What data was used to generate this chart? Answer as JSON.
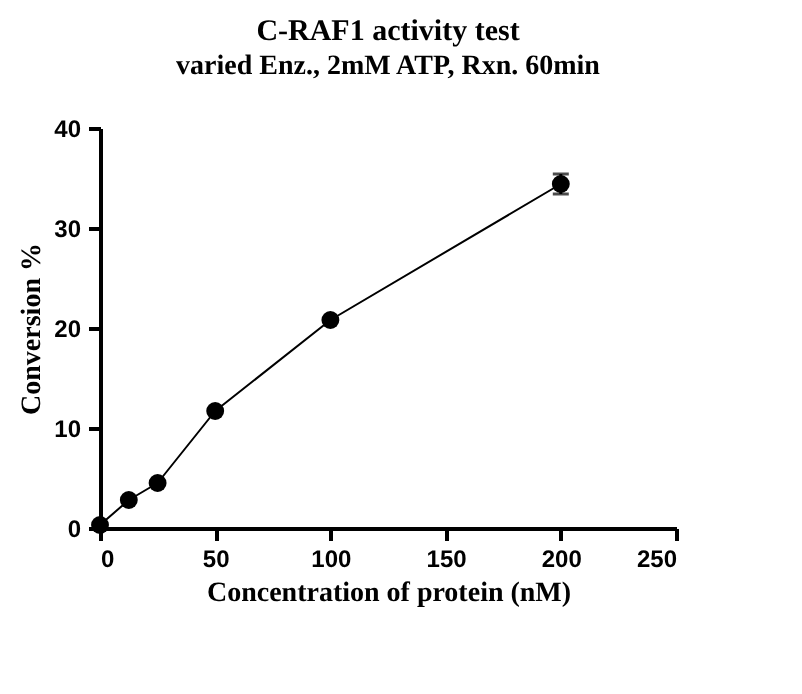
{
  "chart_data": {
    "type": "line",
    "title": "C-RAF1 activity test",
    "subtitle": "varied Enz., 2mM ATP, Rxn. 60min",
    "xlabel": "Concentration of protein (nM)",
    "ylabel": "Conversion %",
    "x": [
      0,
      12.5,
      25,
      50,
      100,
      200
    ],
    "series": [
      {
        "color": "#000000",
        "values": [
          0.3,
          2.8,
          4.5,
          11.7,
          20.8,
          34.4
        ],
        "errors": [
          null,
          null,
          null,
          null,
          null,
          1.0
        ]
      }
    ],
    "xlim": [
      0,
      250
    ],
    "xticks": [
      0,
      50,
      100,
      150,
      200,
      250
    ],
    "ylim": [
      0,
      40
    ],
    "yticks": [
      0,
      10,
      20,
      30,
      40
    ],
    "marker": "circle",
    "line_style": "solid",
    "grid": false
  }
}
